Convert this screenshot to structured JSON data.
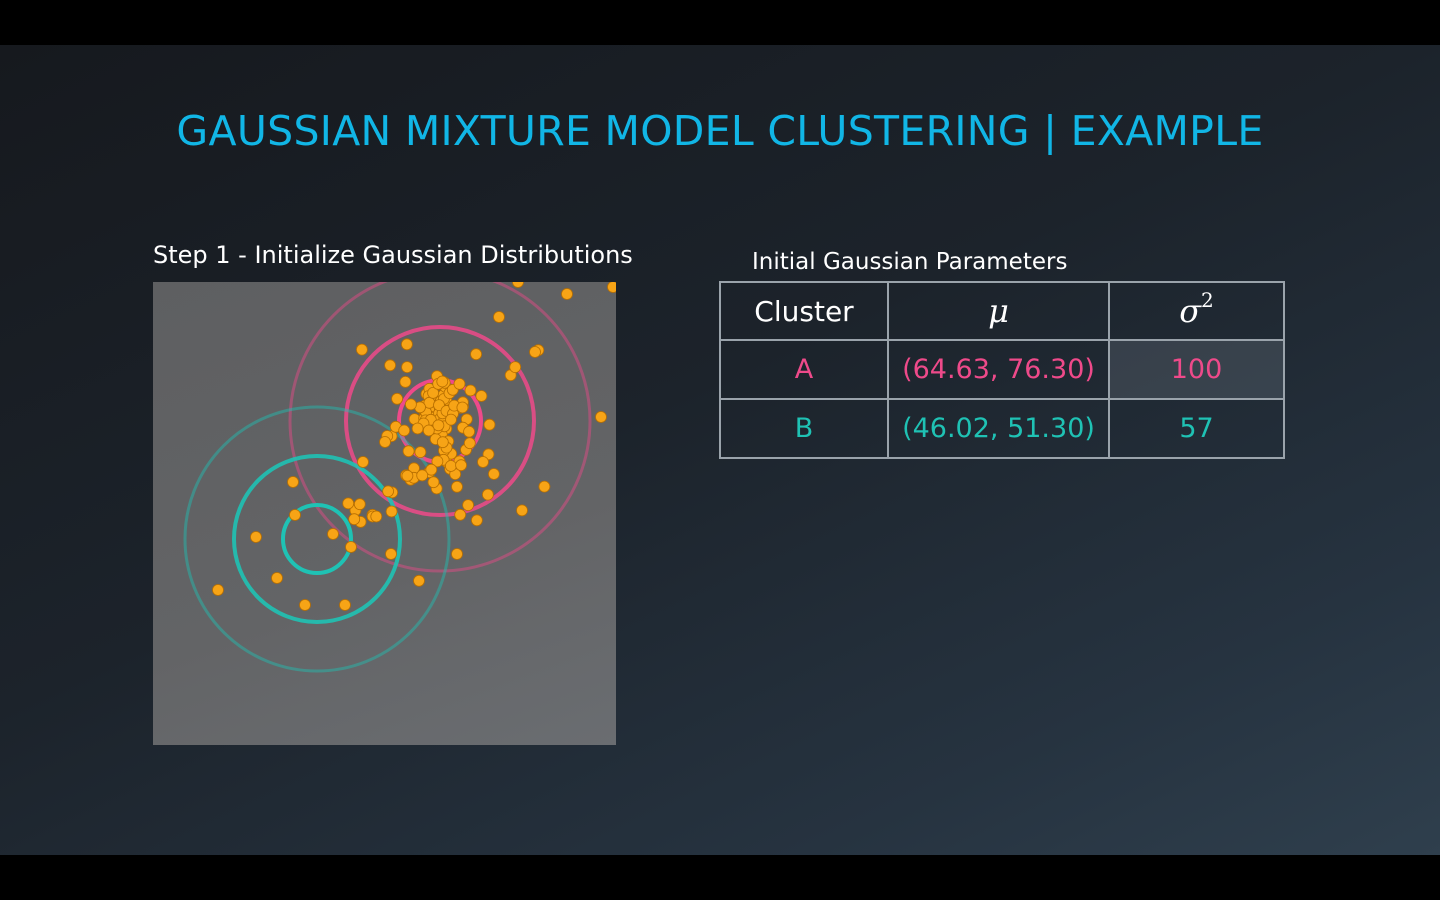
{
  "slide": {
    "title": "GAUSSIAN MIXTURE MODEL CLUSTERING | EXAMPLE",
    "step_label": "Step 1 - Initialize Gaussian Distributions"
  },
  "table": {
    "title": "Initial Gaussian Parameters",
    "headers": {
      "cluster": "Cluster",
      "mu": "μ",
      "sigma": "σ",
      "sigma_exp": "2"
    },
    "rows": [
      {
        "cluster": "A",
        "mu": "(64.63, 76.30)",
        "sigma2": "100",
        "color": "#ee4a8a"
      },
      {
        "cluster": "B",
        "mu": "(46.02, 51.30)",
        "sigma2": "57",
        "color": "#1fc2b4"
      }
    ]
  },
  "colors": {
    "title": "#11b6e6",
    "cluster_a": "#ee4a8a",
    "cluster_b": "#1fc2b4",
    "points": "#f7a416"
  }
}
